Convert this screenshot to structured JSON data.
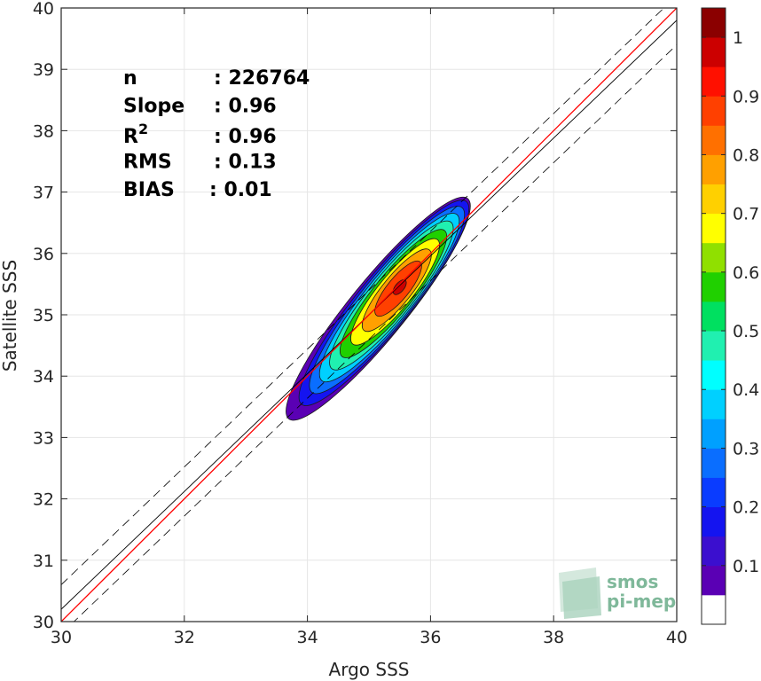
{
  "chart_data": {
    "type": "heatmap",
    "subtype": "density-contour-scatter",
    "xlabel": "Argo SSS",
    "ylabel": "Satellite SSS",
    "xlim": [
      30,
      40
    ],
    "ylim": [
      30,
      40
    ],
    "x_ticks": [
      "30",
      "32",
      "34",
      "36",
      "38",
      "40"
    ],
    "y_ticks": [
      "30",
      "31",
      "32",
      "33",
      "34",
      "35",
      "36",
      "37",
      "38",
      "39",
      "40"
    ],
    "grid": true,
    "stats": [
      {
        "label": "n",
        "value": ": 226764"
      },
      {
        "label": "Slope",
        "value": ": 0.96"
      },
      {
        "label": "R",
        "sup": "2",
        "value": ": 0.96"
      },
      {
        "label": "RMS",
        "value": ": 0.13"
      },
      {
        "label": "BIAS",
        "value": ": 0.01"
      }
    ],
    "lines": {
      "identity": {
        "color": "#ff0000",
        "slope": 1,
        "intercept": 0
      },
      "regression": {
        "color": "#000000",
        "x1": 30,
        "y1": 30.2,
        "x2": 40,
        "y2": 39.8
      },
      "envelope_offset": 0.4
    },
    "density_peak": {
      "x": 35.5,
      "y": 35.45
    },
    "density_axis": {
      "center_x": 35.15,
      "center_y": 35.1,
      "angle_deg": 50.9
    },
    "colorbar": {
      "levels": [
        "0",
        "0.05",
        "0.1",
        "0.15",
        "0.2",
        "0.25",
        "0.3",
        "0.35",
        "0.4",
        "0.45",
        "0.5",
        "0.55",
        "0.6",
        "0.65",
        "0.7",
        "0.75",
        "0.8",
        "0.85",
        "0.9",
        "0.95",
        "1"
      ],
      "tick_labels": [
        "0.1",
        "0.2",
        "0.3",
        "0.4",
        "0.5",
        "0.6",
        "0.7",
        "0.8",
        "0.9",
        "1"
      ],
      "colors": [
        "#ffffff",
        "#5a00b4",
        "#3b0fcf",
        "#1414f0",
        "#0a3cff",
        "#0a6eff",
        "#00a0ff",
        "#00d0ff",
        "#00ffff",
        "#20f0b0",
        "#00e060",
        "#20d000",
        "#90e000",
        "#ffff00",
        "#ffd000",
        "#ffa000",
        "#ff7000",
        "#ff4000",
        "#ff1000",
        "#cc0000",
        "#8b0000"
      ]
    },
    "contour_levels": [
      0.05,
      0.15,
      0.25,
      0.35,
      0.45,
      0.55,
      0.65,
      0.75,
      0.85,
      0.95
    ]
  },
  "watermark": {
    "line1": "smos",
    "line2": "pi-mep"
  }
}
